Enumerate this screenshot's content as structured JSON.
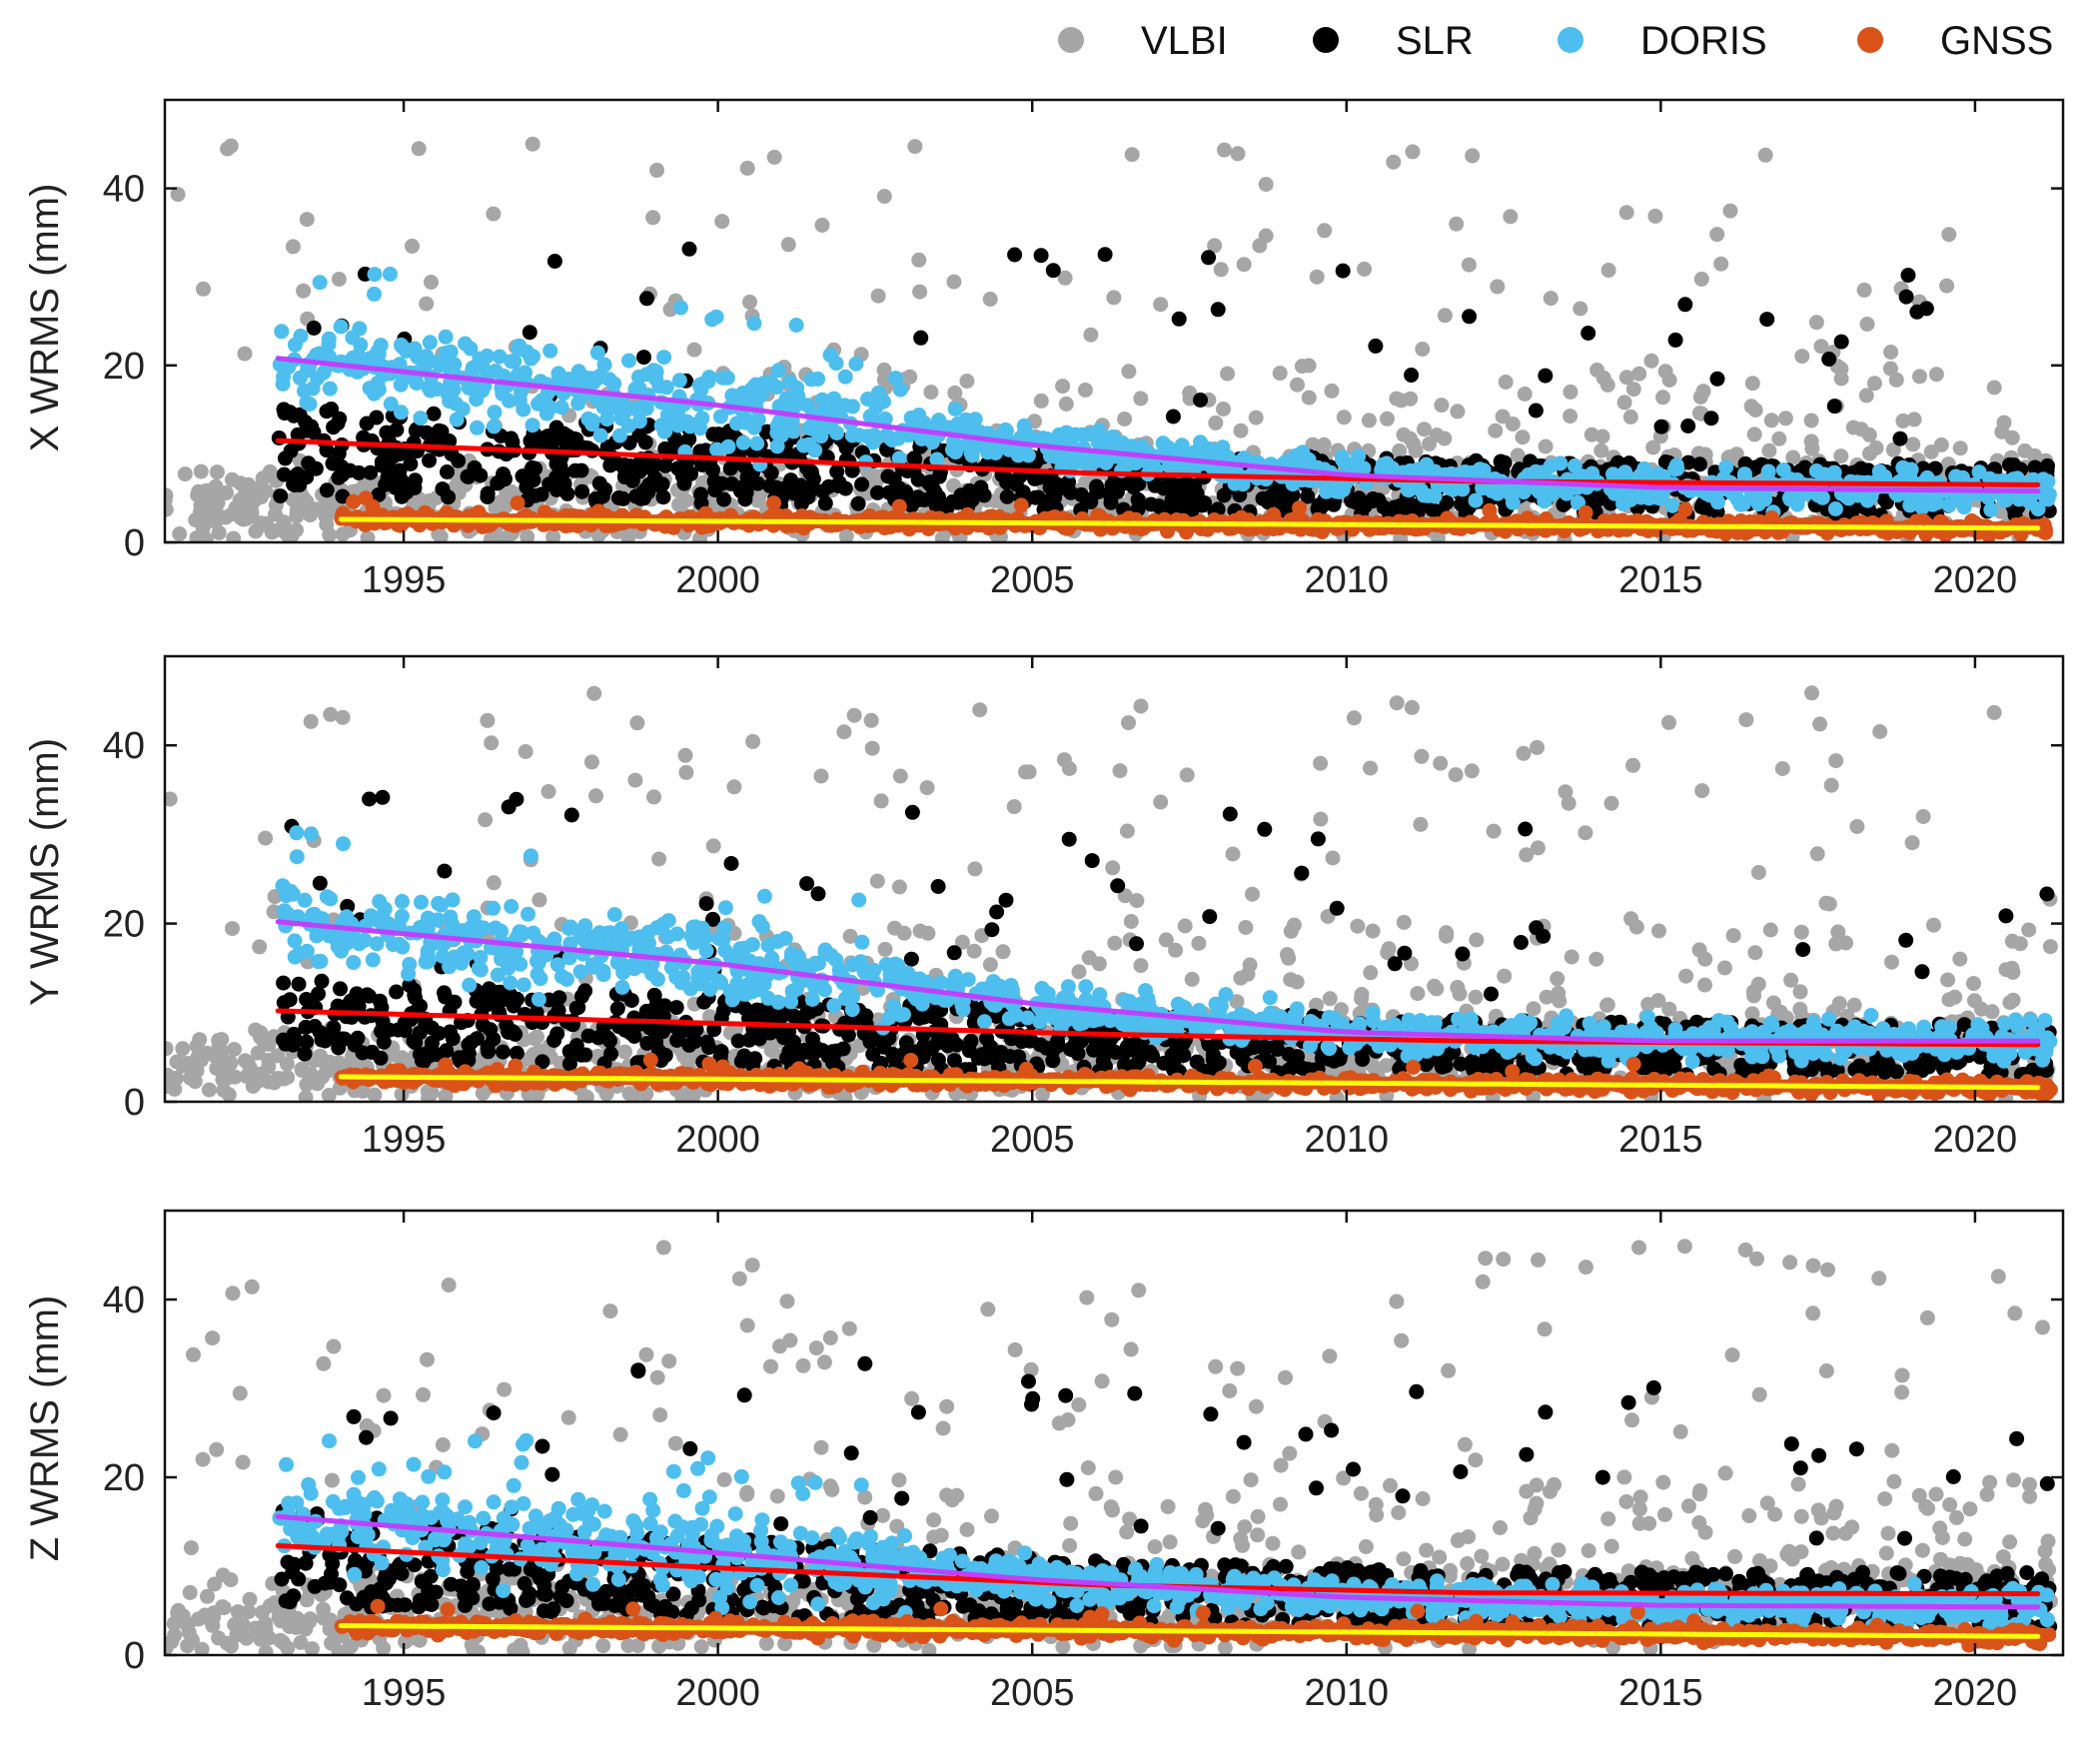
{
  "chart_data": [
    {
      "type": "scatter",
      "ylabel": "X WRMS (mm)",
      "xlim": [
        1991.2,
        2021.4
      ],
      "ylim": [
        0,
        50
      ],
      "xticks": [
        1995,
        2000,
        2005,
        2010,
        2015,
        2020
      ],
      "yticks": [
        0,
        20,
        40
      ],
      "grid": false,
      "series": [
        {
          "name": "VLBI",
          "color": "#a6a6a6",
          "start": 1991.2,
          "end": 2021.2,
          "trend": [
            [
              1991.2,
              4
            ],
            [
              2021.2,
              6
            ]
          ]
        },
        {
          "name": "SLR",
          "color": "#000000",
          "start": 1993.0,
          "end": 2021.2,
          "trend": [
            [
              1993.0,
              11.5
            ],
            [
              2000,
              9.5
            ],
            [
              2006,
              7.8
            ],
            [
              2012,
              6.9
            ],
            [
              2021.0,
              6.5
            ]
          ]
        },
        {
          "name": "DORIS",
          "color": "#4dbeee",
          "start": 1993.0,
          "end": 2021.2,
          "trend": [
            [
              1993.0,
              20.8
            ],
            [
              2000,
              15.5
            ],
            [
              2005,
              11.0
            ],
            [
              2010,
              7.6
            ],
            [
              2015,
              6.2
            ],
            [
              2021.0,
              5.8
            ]
          ]
        },
        {
          "name": "GNSS",
          "color": "#d95319",
          "start": 1994.0,
          "end": 2021.2,
          "trend": [
            [
              1994.0,
              2.6
            ],
            [
              2021.0,
              1.6
            ]
          ]
        }
      ],
      "trend_lines": [
        {
          "series": "SLR",
          "color": "#ff0000"
        },
        {
          "series": "DORIS",
          "color": "#bf40ff"
        },
        {
          "series": "GNSS",
          "color": "#ffff00"
        }
      ]
    },
    {
      "type": "scatter",
      "ylabel": "Y WRMS (mm)",
      "xlim": [
        1991.2,
        2021.4
      ],
      "ylim": [
        0,
        50
      ],
      "xticks": [
        1995,
        2000,
        2005,
        2010,
        2015,
        2020
      ],
      "yticks": [
        0,
        20,
        40
      ],
      "grid": false,
      "series": [
        {
          "name": "VLBI",
          "color": "#a6a6a6",
          "start": 1991.2,
          "end": 2021.2,
          "trend": [
            [
              1991.2,
              4
            ],
            [
              2021.2,
              6
            ]
          ]
        },
        {
          "name": "SLR",
          "color": "#000000",
          "start": 1993.0,
          "end": 2021.2,
          "trend": [
            [
              1993.0,
              10.2
            ],
            [
              2000,
              8.8
            ],
            [
              2006,
              7.6
            ],
            [
              2012,
              6.8
            ],
            [
              2021.0,
              6.4
            ]
          ]
        },
        {
          "name": "DORIS",
          "color": "#4dbeee",
          "start": 1993.0,
          "end": 2021.2,
          "trend": [
            [
              1993.0,
              20.2
            ],
            [
              2000,
              15.5
            ],
            [
              2005,
              11.0
            ],
            [
              2010,
              7.8
            ],
            [
              2015,
              6.8
            ],
            [
              2021.0,
              6.8
            ]
          ]
        },
        {
          "name": "GNSS",
          "color": "#d95319",
          "start": 1994.0,
          "end": 2021.2,
          "trend": [
            [
              1994.0,
              2.8
            ],
            [
              2021.0,
              1.6
            ]
          ]
        }
      ],
      "trend_lines": [
        {
          "series": "SLR",
          "color": "#ff0000"
        },
        {
          "series": "DORIS",
          "color": "#bf40ff"
        },
        {
          "series": "GNSS",
          "color": "#ffff00"
        }
      ]
    },
    {
      "type": "scatter",
      "ylabel": "Z WRMS (mm)",
      "xlim": [
        1991.2,
        2021.4
      ],
      "ylim": [
        0,
        50
      ],
      "xticks": [
        1995,
        2000,
        2005,
        2010,
        2015,
        2020
      ],
      "yticks": [
        0,
        20,
        40
      ],
      "grid": false,
      "series": [
        {
          "name": "VLBI",
          "color": "#a6a6a6",
          "start": 1991.2,
          "end": 2021.2,
          "trend": [
            [
              1991.2,
              4
            ],
            [
              2021.2,
              7
            ]
          ]
        },
        {
          "name": "SLR",
          "color": "#000000",
          "start": 1993.0,
          "end": 2021.2,
          "trend": [
            [
              1993.0,
              12.3
            ],
            [
              2000,
              9.8
            ],
            [
              2006,
              7.9
            ],
            [
              2012,
              7.0
            ],
            [
              2021.0,
              6.9
            ]
          ]
        },
        {
          "name": "DORIS",
          "color": "#4dbeee",
          "start": 1993.0,
          "end": 2021.2,
          "trend": [
            [
              1993.0,
              15.6
            ],
            [
              2000,
              11.5
            ],
            [
              2005,
              8.5
            ],
            [
              2010,
              6.5
            ],
            [
              2015,
              5.6
            ],
            [
              2021.0,
              5.4
            ]
          ]
        },
        {
          "name": "GNSS",
          "color": "#d95319",
          "start": 1994.0,
          "end": 2021.2,
          "trend": [
            [
              1994.0,
              3.3
            ],
            [
              2021.0,
              2.1
            ]
          ]
        }
      ],
      "trend_lines": [
        {
          "series": "SLR",
          "color": "#ff0000"
        },
        {
          "series": "DORIS",
          "color": "#bf40ff"
        },
        {
          "series": "GNSS",
          "color": "#ffff00"
        }
      ]
    }
  ],
  "legend": {
    "placement": "top-right",
    "items": [
      {
        "label": "VLBI",
        "color": "#a6a6a6"
      },
      {
        "label": "SLR",
        "color": "#000000"
      },
      {
        "label": "DORIS",
        "color": "#4dbeee"
      },
      {
        "label": "GNSS",
        "color": "#d95319"
      }
    ]
  }
}
